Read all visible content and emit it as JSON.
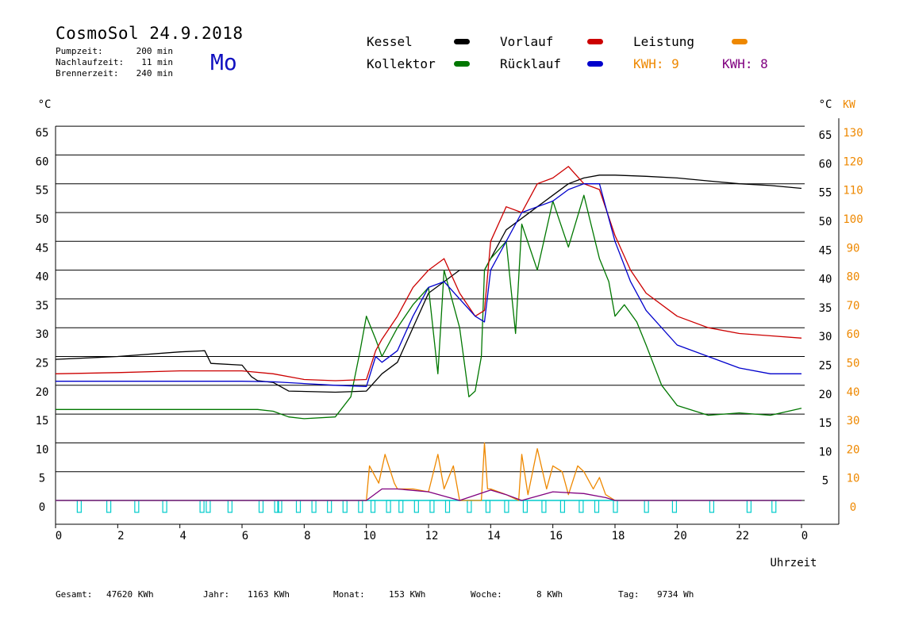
{
  "header": {
    "title": "CosmoSol 24.9.2018",
    "weekday": "Mo",
    "params": [
      {
        "label": "Pumpzeit:",
        "value": "200 min"
      },
      {
        "label": "Nachlaufzeit:",
        "value": "11 min"
      },
      {
        "label": "Brennerzeit:",
        "value": "240 min"
      }
    ]
  },
  "legend": {
    "kessel": "Kessel",
    "kollektor": "Kollektor",
    "vorlauf": "Vorlauf",
    "ruecklauf": "Rücklauf",
    "leistung": "Leistung",
    "kwh1": "KWH: 9",
    "kwh2": "KWH: 8"
  },
  "footer": {
    "gesamt_label": "Gesamt:",
    "gesamt_value": "47620 KWh",
    "jahr_label": "Jahr:",
    "jahr_value": "1163 KWh",
    "monat_label": "Monat:",
    "monat_value": "153 KWh",
    "woche_label": "Woche:",
    "woche_value": "8 KWh",
    "tag_label": "Tag:",
    "tag_value": "9734 Wh"
  },
  "chart_data": {
    "type": "line",
    "xlabel": "Uhrzeit",
    "ylabel_left": "°C",
    "ylabel_right_temp": "°C",
    "ylabel_right_power": "KW",
    "xlim": [
      0,
      24
    ],
    "ylim": [
      0,
      65
    ],
    "x_ticks": [
      "0",
      "2",
      "4",
      "6",
      "8",
      "10",
      "12",
      "14",
      "16",
      "18",
      "20",
      "22",
      "0"
    ],
    "y_ticks_left": [
      "0",
      "5",
      "10",
      "15",
      "20",
      "25",
      "30",
      "35",
      "40",
      "45",
      "50",
      "55",
      "60",
      "65"
    ],
    "y_ticks_right_temp": [
      "5",
      "10",
      "15",
      "20",
      "25",
      "30",
      "35",
      "40",
      "45",
      "50",
      "55",
      "60",
      "65"
    ],
    "y_ticks_right_power": [
      "0",
      "10",
      "20",
      "30",
      "40",
      "50",
      "60",
      "70",
      "80",
      "90",
      "100",
      "110",
      "120",
      "130"
    ],
    "grid": true,
    "colors": {
      "kessel": "#000000",
      "kollektor": "#007700",
      "vorlauf": "#cc0000",
      "ruecklauf": "#0000cc",
      "leistung": "#ee8800",
      "kwh2": "#800080",
      "pump": "#00cccc"
    },
    "series": [
      {
        "name": "Kessel",
        "color": "#000000",
        "x": [
          0,
          2,
          4,
          4.8,
          5,
          6,
          6.3,
          6.5,
          7,
          7.5,
          9,
          10,
          10.5,
          11,
          12,
          13,
          13.7,
          13.8,
          14,
          14.5,
          15,
          15.5,
          16,
          16.5,
          17,
          17.5,
          18,
          19,
          20,
          21,
          22,
          23,
          24
        ],
        "y": [
          24.5,
          25,
          25.8,
          26,
          23.8,
          23.5,
          21.5,
          20.8,
          20.5,
          19,
          18.8,
          19,
          22,
          24,
          36,
          40,
          40,
          40,
          42,
          47,
          49,
          51,
          53,
          55,
          56,
          56.5,
          56.5,
          56.3,
          56,
          55.5,
          55,
          54.7,
          54.2
        ]
      },
      {
        "name": "Kollektor",
        "color": "#007700",
        "x": [
          0,
          2,
          4,
          6,
          6.5,
          7,
          7.5,
          8,
          9,
          9.5,
          9.8,
          10,
          10.3,
          10.5,
          11,
          11.5,
          12,
          12.3,
          12.5,
          13,
          13.3,
          13.5,
          13.7,
          13.8,
          14,
          14.5,
          14.8,
          15,
          15.5,
          16,
          16.5,
          17,
          17.5,
          17.8,
          18,
          18.3,
          18.7,
          19,
          19.5,
          20,
          21,
          22,
          23,
          24
        ],
        "y": [
          15.8,
          15.8,
          15.8,
          15.8,
          15.8,
          15.5,
          14.5,
          14.2,
          14.5,
          18,
          26,
          32,
          28,
          25,
          30,
          34,
          37,
          22,
          40,
          30,
          18,
          19,
          25,
          40,
          42,
          45,
          29,
          48,
          40,
          52,
          44,
          53,
          42,
          38,
          32,
          34,
          31,
          27,
          20,
          16.5,
          14.8,
          15.2,
          14.8,
          16
        ]
      },
      {
        "name": "Vorlauf",
        "color": "#cc0000",
        "x": [
          0,
          2,
          4,
          6,
          7,
          8,
          9,
          10,
          10.3,
          10.5,
          11,
          11.5,
          12,
          12.5,
          13,
          13.5,
          13.8,
          14,
          14.5,
          15,
          15.5,
          16,
          16.5,
          17,
          17.5,
          18,
          18.5,
          19,
          20,
          21,
          22,
          23,
          24
        ],
        "y": [
          22,
          22.2,
          22.5,
          22.5,
          22,
          21,
          20.8,
          21,
          26,
          28,
          32,
          37,
          40,
          42,
          36,
          32,
          33,
          45,
          51,
          50,
          55,
          56,
          58,
          55,
          54,
          46,
          40,
          36,
          32,
          30,
          29,
          28.6,
          28.2
        ]
      },
      {
        "name": "Rücklauf",
        "color": "#0000cc",
        "x": [
          0,
          2,
          4,
          6,
          7,
          8,
          9,
          10,
          10.3,
          10.5,
          11,
          11.5,
          12,
          12.5,
          13,
          13.5,
          13.8,
          14,
          14.5,
          15,
          15.5,
          16,
          16.5,
          17,
          17.5,
          18,
          18.5,
          19,
          20,
          21,
          22,
          23,
          24
        ],
        "y": [
          20.7,
          20.7,
          20.7,
          20.7,
          20.6,
          20.3,
          20,
          19.8,
          25,
          24,
          26,
          32,
          37,
          38,
          35,
          32,
          31,
          40,
          45,
          50,
          51,
          52,
          54,
          55,
          55,
          45,
          38,
          33,
          27,
          25,
          23,
          22,
          22
        ]
      },
      {
        "name": "Leistung",
        "color": "#ee8800",
        "x": [
          0,
          10,
          10.1,
          10.4,
          10.6,
          10.9,
          11,
          11.5,
          12,
          12.3,
          12.5,
          12.8,
          13,
          13.7,
          13.8,
          13.9,
          14,
          14.5,
          14.9,
          15,
          15.2,
          15.5,
          15.8,
          16,
          16.3,
          16.5,
          16.8,
          17,
          17.3,
          17.5,
          17.7,
          18,
          24
        ],
        "y": [
          0,
          0,
          6,
          3,
          8,
          3,
          2,
          2,
          1.5,
          8,
          2,
          6,
          0,
          0,
          10,
          2,
          2,
          1,
          0,
          8,
          1,
          9,
          2,
          6,
          5,
          1,
          6,
          5,
          2,
          4,
          1,
          0,
          0
        ]
      },
      {
        "name": "KWH",
        "color": "#800080",
        "x": [
          0,
          10,
          10.5,
          11,
          12,
          13,
          14,
          14.5,
          15,
          16,
          17,
          17.7,
          18,
          24
        ],
        "y": [
          0,
          0,
          2,
          2,
          1.5,
          0,
          1.8,
          1,
          0,
          1.5,
          1.2,
          0.5,
          0,
          0
        ]
      }
    ],
    "pump_cycles": [
      0.75,
      1.7,
      2.6,
      3.5,
      4.7,
      4.9,
      5.6,
      6.6,
      7.1,
      7.2,
      7.8,
      8.3,
      8.8,
      9.3,
      9.8,
      10.2,
      10.7,
      11.1,
      11.6,
      12.1,
      12.6,
      13.3,
      13.9,
      14.5,
      15.1,
      15.7,
      16.3,
      16.9,
      17.4,
      18,
      19,
      19.9,
      21.1,
      22.3,
      23.1
    ]
  }
}
